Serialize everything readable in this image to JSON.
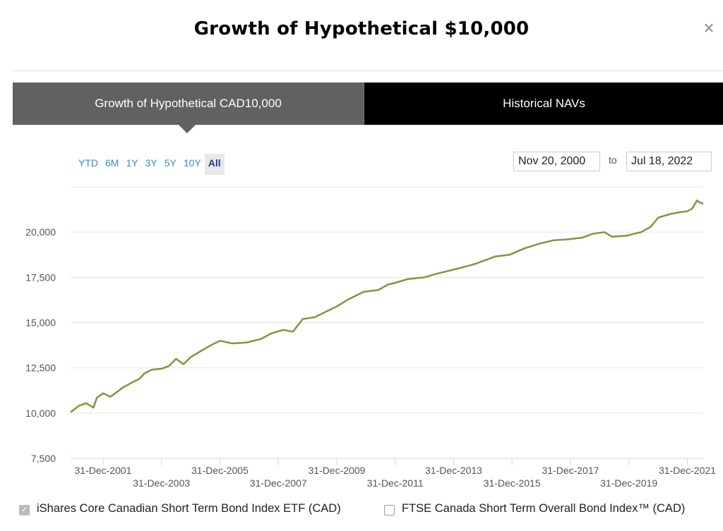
{
  "modal": {
    "title": "Growth of Hypothetical $10,000",
    "close_icon": "×"
  },
  "tabs": [
    {
      "label": "Growth of Hypothetical CAD10,000",
      "active": true
    },
    {
      "label": "Historical NAVs",
      "active": false
    }
  ],
  "range_buttons": [
    "YTD",
    "6M",
    "1Y",
    "3Y",
    "5Y",
    "10Y",
    "All"
  ],
  "selected_range": "All",
  "date_range": {
    "from": "Nov 20, 2000",
    "separator": "to",
    "to": "Jul 18, 2022"
  },
  "legend": [
    {
      "label": "iShares Core Canadian Short Term Bond Index ETF (CAD)",
      "checked": true
    },
    {
      "label": "FTSE Canada Short Term Overall Bond Index™ (CAD)",
      "checked": false
    }
  ],
  "colors": {
    "series": "#7a9a3a",
    "accent_blue": "#3a8bd8",
    "tab_active": "#616161",
    "tab_inactive": "#000000"
  },
  "chart_data": {
    "type": "line",
    "ylim": [
      7500,
      22500
    ],
    "y_ticks": [
      7500,
      10000,
      12500,
      15000,
      17500,
      20000
    ],
    "y_tick_labels": [
      "7,500",
      "10,000",
      "12,500",
      "15,000",
      "17,500",
      "20,000"
    ],
    "x_tick_labels_row1": [
      "31-Dec-2001",
      "31-Dec-2005",
      "31-Dec-2009",
      "31-Dec-2013",
      "31-Dec-2017",
      "31-Dec-2021"
    ],
    "x_tick_labels_row2": [
      "31-Dec-2003",
      "31-Dec-2007",
      "31-Dec-2011",
      "31-Dec-2015",
      "31-Dec-2019"
    ],
    "x_ticks": [
      "2001-12-31",
      "2003-12-31",
      "2005-12-31",
      "2007-12-31",
      "2009-12-31",
      "2011-12-31",
      "2013-12-31",
      "2015-12-31",
      "2017-12-31",
      "2019-12-31",
      "2021-12-31"
    ],
    "x_range": [
      "2000-11-20",
      "2022-07-18"
    ],
    "grid": true,
    "legend_position": "bottom",
    "series": [
      {
        "name": "iShares Core Canadian Short Term Bond Index ETF (CAD)",
        "points": [
          [
            "2000-11-20",
            10050
          ],
          [
            "2001-03-01",
            10400
          ],
          [
            "2001-06-01",
            10550
          ],
          [
            "2001-09-01",
            10300
          ],
          [
            "2001-10-15",
            10850
          ],
          [
            "2002-01-01",
            11100
          ],
          [
            "2002-04-01",
            10900
          ],
          [
            "2002-09-01",
            11400
          ],
          [
            "2003-01-01",
            11700
          ],
          [
            "2003-04-01",
            11900
          ],
          [
            "2003-06-01",
            12200
          ],
          [
            "2003-09-01",
            12400
          ],
          [
            "2004-01-01",
            12450
          ],
          [
            "2004-04-01",
            12600
          ],
          [
            "2004-07-01",
            13000
          ],
          [
            "2004-10-01",
            12700
          ],
          [
            "2005-01-01",
            13100
          ],
          [
            "2005-06-01",
            13500
          ],
          [
            "2005-10-01",
            13800
          ],
          [
            "2006-01-01",
            14000
          ],
          [
            "2006-06-01",
            13850
          ],
          [
            "2006-12-01",
            13900
          ],
          [
            "2007-06-01",
            14100
          ],
          [
            "2007-10-01",
            14400
          ],
          [
            "2008-03-01",
            14600
          ],
          [
            "2008-07-01",
            14500
          ],
          [
            "2008-11-01",
            15200
          ],
          [
            "2009-04-01",
            15300
          ],
          [
            "2009-10-01",
            15700
          ],
          [
            "2010-01-01",
            15900
          ],
          [
            "2010-06-01",
            16300
          ],
          [
            "2010-12-01",
            16700
          ],
          [
            "2011-06-01",
            16800
          ],
          [
            "2011-10-01",
            17100
          ],
          [
            "2012-01-01",
            17200
          ],
          [
            "2012-06-01",
            17400
          ],
          [
            "2013-01-01",
            17500
          ],
          [
            "2013-06-01",
            17700
          ],
          [
            "2013-12-01",
            17900
          ],
          [
            "2014-06-01",
            18100
          ],
          [
            "2014-10-01",
            18250
          ],
          [
            "2015-03-01",
            18500
          ],
          [
            "2015-06-01",
            18650
          ],
          [
            "2015-12-01",
            18750
          ],
          [
            "2016-06-01",
            19100
          ],
          [
            "2016-12-01",
            19350
          ],
          [
            "2017-06-01",
            19550
          ],
          [
            "2017-12-01",
            19600
          ],
          [
            "2018-06-01",
            19700
          ],
          [
            "2018-10-01",
            19900
          ],
          [
            "2019-03-01",
            20000
          ],
          [
            "2019-06-01",
            19750
          ],
          [
            "2019-12-01",
            19800
          ],
          [
            "2020-03-01",
            19900
          ],
          [
            "2020-06-01",
            20000
          ],
          [
            "2020-10-01",
            20300
          ],
          [
            "2021-01-01",
            20800
          ],
          [
            "2021-06-01",
            21000
          ],
          [
            "2021-10-01",
            21100
          ],
          [
            "2022-01-01",
            21150
          ],
          [
            "2022-03-01",
            21300
          ],
          [
            "2022-05-01",
            21750
          ],
          [
            "2022-06-01",
            21650
          ],
          [
            "2022-07-01",
            21600
          ],
          [
            "2022-07-18",
            21550
          ]
        ]
      }
    ]
  }
}
